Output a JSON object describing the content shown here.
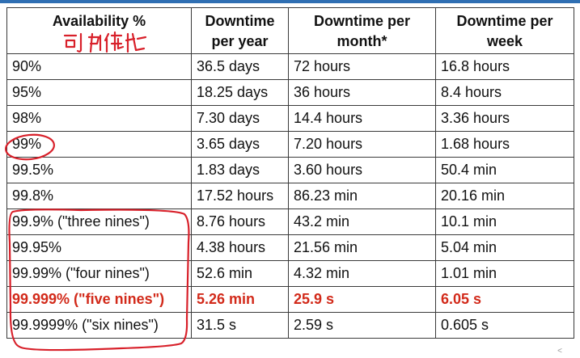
{
  "table": {
    "headers": [
      "Availability %",
      "Downtime per year",
      "Downtime per month*",
      "Downtime per week"
    ],
    "rows": [
      [
        "90%",
        "36.5 days",
        "72 hours",
        "16.8 hours"
      ],
      [
        "95%",
        "18.25 days",
        "36 hours",
        "8.4 hours"
      ],
      [
        "98%",
        "7.30 days",
        "14.4 hours",
        "3.36 hours"
      ],
      [
        "99%",
        "3.65 days",
        "7.20 hours",
        "1.68 hours"
      ],
      [
        "99.5%",
        "1.83 days",
        "3.60 hours",
        "50.4 min"
      ],
      [
        "99.8%",
        "17.52 hours",
        "86.23 min",
        "20.16 min"
      ],
      [
        "99.9% (\"three nines\")",
        "8.76 hours",
        "43.2 min",
        "10.1 min"
      ],
      [
        "99.95%",
        "4.38 hours",
        "21.56 min",
        "5.04 min"
      ],
      [
        "99.99% (\"four nines\")",
        "52.6 min",
        "4.32 min",
        "1.01 min"
      ],
      [
        "99.999% (\"five nines\")",
        "5.26 min",
        "25.9 s",
        "6.05 s"
      ],
      [
        "99.9999% (\"six nines\")",
        "31.5 s",
        "2.59 s",
        "0.605 s"
      ]
    ]
  },
  "annotations": {
    "handwritten_note": "可用性",
    "ink_color": "#d8202a",
    "highlight_color": "#d22a1a"
  },
  "corner_glyph": "<"
}
